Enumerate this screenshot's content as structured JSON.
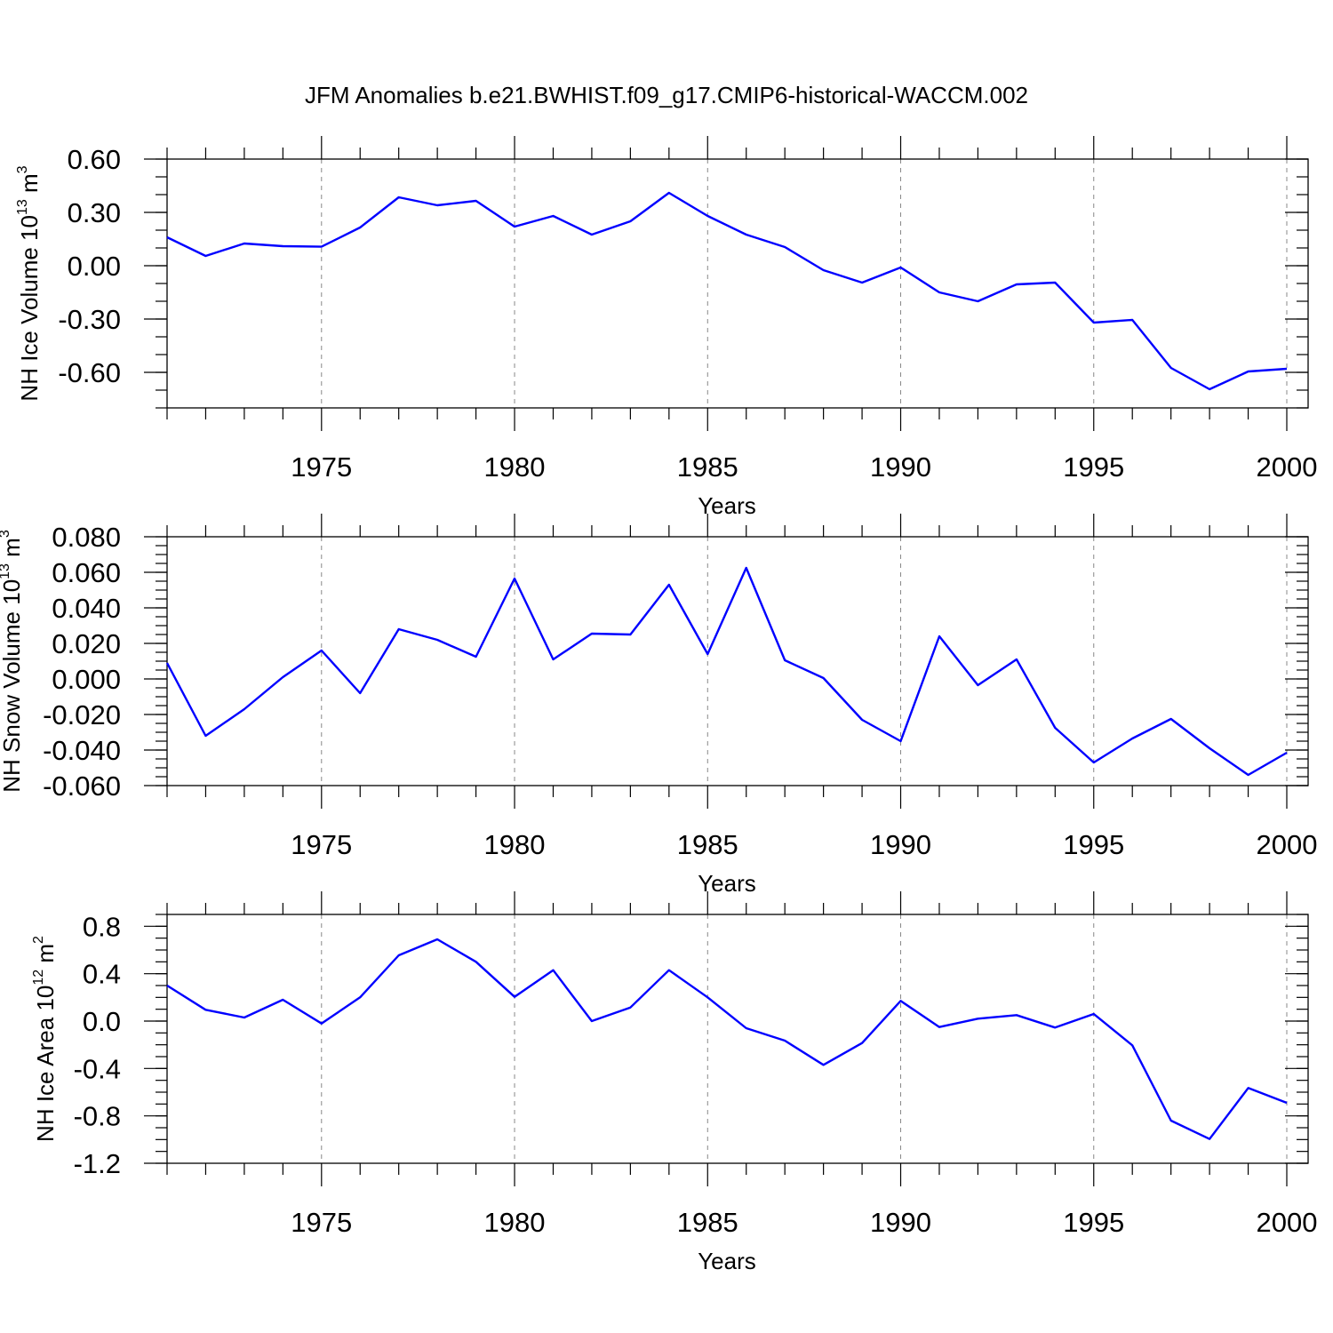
{
  "title": "JFM Anomalies b.e21.BWHIST.f09_g17.CMIP6-historical-WACCM.002",
  "line_color": "#0000ff",
  "chart_data": [
    {
      "type": "line",
      "title": "",
      "xlabel": "Years",
      "ylabel": {
        "prefix": "NH Ice Volume 10",
        "exponent": "13",
        "unit": " m",
        "unit_exponent": "3"
      },
      "xlim": [
        1971,
        2000
      ],
      "ylim": [
        -0.8,
        0.6
      ],
      "x_ticks": [
        1975,
        1980,
        1985,
        1990,
        1995,
        2000
      ],
      "x_tick_labels": [
        "1975",
        "1980",
        "1985",
        "1990",
        "1995",
        "2000"
      ],
      "y_ticks": [
        0.6,
        0.3,
        0.0,
        -0.3,
        -0.6
      ],
      "y_tick_labels": [
        "0.60",
        "0.30",
        "0.00",
        "-0.30",
        "-0.60"
      ],
      "y_minor_step": 0.1,
      "grid": "vertical dashed at labeled years",
      "series": [
        {
          "x": [
            1971,
            1972,
            1973,
            1974,
            1975,
            1976,
            1977,
            1978,
            1979,
            1980,
            1981,
            1982,
            1983,
            1984,
            1985,
            1986,
            1987,
            1988,
            1989,
            1990,
            1991,
            1992,
            1993,
            1994,
            1995,
            1996,
            1997,
            1998,
            1999,
            2000
          ],
          "values": [
            0.16,
            0.055,
            0.125,
            0.11,
            0.107,
            0.215,
            0.385,
            0.34,
            0.365,
            0.22,
            0.28,
            0.175,
            0.25,
            0.41,
            0.28,
            0.175,
            0.105,
            -0.025,
            -0.095,
            -0.01,
            -0.15,
            -0.2,
            -0.105,
            -0.095,
            -0.32,
            -0.305,
            -0.575,
            -0.695,
            -0.595,
            -0.58
          ]
        }
      ]
    },
    {
      "type": "line",
      "title": "",
      "xlabel": "Years",
      "ylabel": {
        "prefix": "NH Snow Volume 10",
        "exponent": "13",
        "unit": " m",
        "unit_exponent": "3"
      },
      "xlim": [
        1971,
        2000
      ],
      "ylim": [
        -0.06,
        0.08
      ],
      "x_ticks": [
        1975,
        1980,
        1985,
        1990,
        1995,
        2000
      ],
      "x_tick_labels": [
        "1975",
        "1980",
        "1985",
        "1990",
        "1995",
        "2000"
      ],
      "y_ticks": [
        0.08,
        0.06,
        0.04,
        0.02,
        0.0,
        -0.02,
        -0.04,
        -0.06
      ],
      "y_tick_labels": [
        "0.080",
        "0.060",
        "0.040",
        "0.020",
        "0.000",
        "-0.020",
        "-0.040",
        "-0.060"
      ],
      "y_minor_step": 0.005,
      "grid": "vertical dashed at labeled years",
      "series": [
        {
          "x": [
            1971,
            1972,
            1973,
            1974,
            1975,
            1976,
            1977,
            1978,
            1979,
            1980,
            1981,
            1982,
            1983,
            1984,
            1985,
            1986,
            1987,
            1988,
            1989,
            1990,
            1991,
            1992,
            1993,
            1994,
            1995,
            1996,
            1997,
            1998,
            1999,
            2000
          ],
          "values": [
            0.009,
            -0.032,
            -0.017,
            0.001,
            0.016,
            -0.008,
            0.028,
            0.022,
            0.0125,
            0.0565,
            0.011,
            0.0255,
            0.025,
            0.053,
            0.014,
            0.0625,
            0.0105,
            0.0005,
            -0.023,
            -0.035,
            0.024,
            -0.0035,
            0.011,
            -0.0275,
            -0.047,
            -0.0335,
            -0.0225,
            -0.039,
            -0.054,
            -0.0415
          ]
        }
      ]
    },
    {
      "type": "line",
      "title": "",
      "xlabel": "Years",
      "ylabel": {
        "prefix": "NH Ice Area 10",
        "exponent": "12",
        "unit": " m",
        "unit_exponent": "2"
      },
      "xlim": [
        1971,
        2000
      ],
      "ylim": [
        -1.2,
        0.9
      ],
      "x_ticks": [
        1975,
        1980,
        1985,
        1990,
        1995,
        2000
      ],
      "x_tick_labels": [
        "1975",
        "1980",
        "1985",
        "1990",
        "1995",
        "2000"
      ],
      "y_ticks": [
        0.8,
        0.4,
        0.0,
        -0.4,
        -0.8,
        -1.2
      ],
      "y_tick_labels": [
        "0.8",
        "0.4",
        "0.0",
        "-0.4",
        "-0.8",
        "-1.2"
      ],
      "y_minor_step": 0.1,
      "grid": "vertical dashed at labeled years",
      "series": [
        {
          "x": [
            1971,
            1972,
            1973,
            1974,
            1975,
            1976,
            1977,
            1978,
            1979,
            1980,
            1981,
            1982,
            1983,
            1984,
            1985,
            1986,
            1987,
            1988,
            1989,
            1990,
            1991,
            1992,
            1993,
            1994,
            1995,
            1996,
            1997,
            1998,
            1999,
            2000
          ],
          "values": [
            0.3,
            0.095,
            0.03,
            0.18,
            -0.02,
            0.2,
            0.555,
            0.69,
            0.5,
            0.205,
            0.43,
            0.0,
            0.115,
            0.43,
            0.2,
            -0.06,
            -0.165,
            -0.37,
            -0.185,
            0.17,
            -0.05,
            0.02,
            0.05,
            -0.055,
            0.06,
            -0.205,
            -0.84,
            -0.995,
            -0.565,
            -0.69
          ]
        }
      ]
    }
  ]
}
